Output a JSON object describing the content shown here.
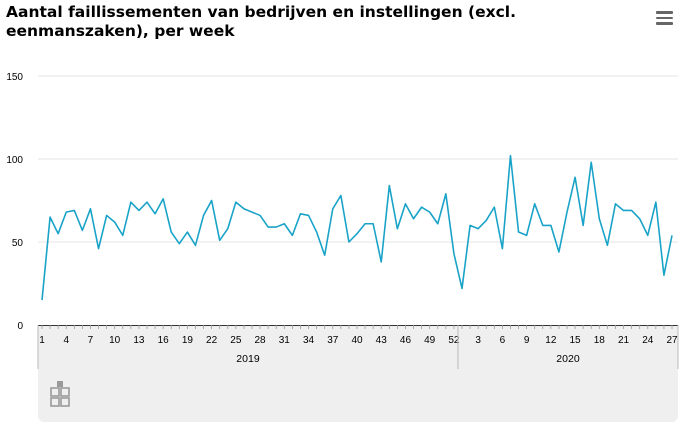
{
  "title": "Aantal faillissementen van bedrijven en instellingen (excl. eenmanszaken), per week",
  "menu_icon": "hamburger-menu-icon",
  "logo_icon": "cbs-logo-icon",
  "colors": {
    "line": "#1aa3c8",
    "band": "#efefef",
    "grid": "#e6e6e6"
  },
  "chart_data": {
    "type": "line",
    "title": "Aantal faillissementen van bedrijven en instellingen (excl. eenmanszaken), per week",
    "xlabel": "",
    "ylabel": "",
    "ylim": [
      0,
      150
    ],
    "y_ticks": [
      0,
      50,
      100,
      150
    ],
    "grid": true,
    "legend": "none",
    "x_tick_labels": [
      "1",
      "4",
      "7",
      "10",
      "13",
      "16",
      "19",
      "22",
      "25",
      "28",
      "31",
      "34",
      "37",
      "40",
      "43",
      "46",
      "49",
      "52",
      "3",
      "6",
      "9",
      "12",
      "15",
      "18",
      "21",
      "24",
      "27"
    ],
    "years": [
      "2019",
      "2020"
    ],
    "series": [
      {
        "name": "",
        "values": [
          15,
          65,
          55,
          68,
          69,
          57,
          70,
          46,
          66,
          62,
          54,
          74,
          69,
          74,
          67,
          76,
          56,
          49,
          56,
          48,
          66,
          75,
          51,
          58,
          74,
          70,
          68,
          66,
          59,
          59,
          61,
          54,
          67,
          66,
          56,
          42,
          70,
          78,
          50,
          55,
          61,
          61,
          38,
          84,
          58,
          73,
          64,
          71,
          68,
          61,
          79,
          43,
          22,
          60,
          58,
          63,
          71,
          46,
          102,
          56,
          54,
          73,
          60,
          60,
          44,
          68,
          89,
          60,
          98,
          64,
          48,
          73,
          69,
          69,
          64,
          54,
          74,
          30,
          54
        ]
      }
    ]
  }
}
